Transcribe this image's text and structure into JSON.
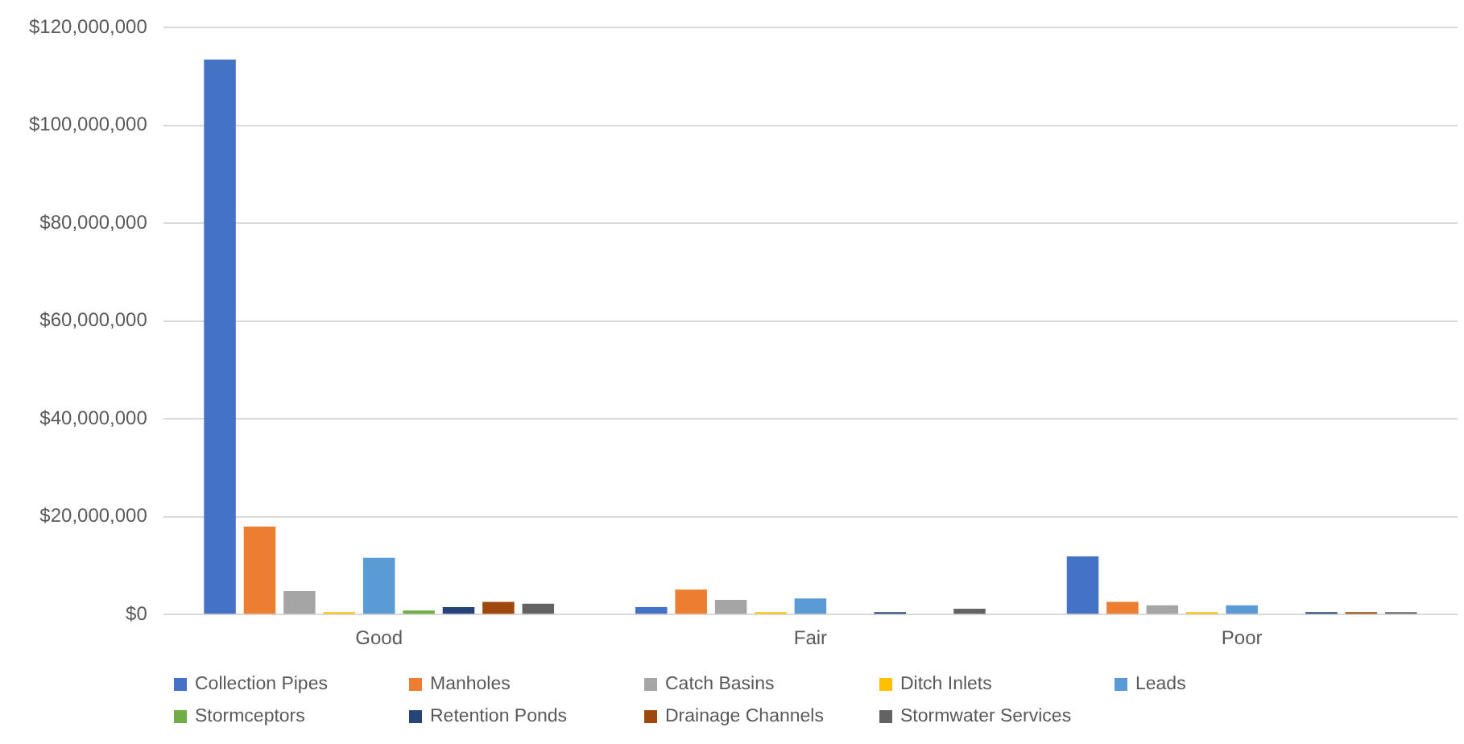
{
  "chart_data": {
    "type": "bar",
    "categories": [
      "Good",
      "Fair",
      "Poor"
    ],
    "series": [
      {
        "name": "Collection Pipes",
        "color": "#4472c4",
        "values": [
          113500000,
          1500000,
          11900000
        ]
      },
      {
        "name": "Manholes",
        "color": "#ed7d31",
        "values": [
          18000000,
          5100000,
          2600000
        ]
      },
      {
        "name": "Catch Basins",
        "color": "#a5a5a5",
        "values": [
          4800000,
          3000000,
          1900000
        ]
      },
      {
        "name": "Ditch Inlets",
        "color": "#ffc000",
        "values": [
          500000,
          500000,
          500000
        ]
      },
      {
        "name": "Leads",
        "color": "#5b9bd5",
        "values": [
          11600000,
          3300000,
          1900000
        ]
      },
      {
        "name": "Stormceptors",
        "color": "#70ad47",
        "values": [
          800000,
          0,
          0
        ]
      },
      {
        "name": "Retention Ponds",
        "color": "#264478",
        "values": [
          1500000,
          500000,
          500000
        ]
      },
      {
        "name": "Drainage Channels",
        "color": "#9e480e",
        "values": [
          2600000,
          0,
          500000
        ]
      },
      {
        "name": "Stormwater Services",
        "color": "#636363",
        "values": [
          2200000,
          1200000,
          500000
        ]
      }
    ],
    "ylim": [
      0,
      120000000
    ],
    "yticks": [
      {
        "value": 0,
        "label": "$0"
      },
      {
        "value": 20000000,
        "label": "$20,000,000"
      },
      {
        "value": 40000000,
        "label": "$40,000,000"
      },
      {
        "value": 60000000,
        "label": "$60,000,000"
      },
      {
        "value": 80000000,
        "label": "$80,000,000"
      },
      {
        "value": 100000000,
        "label": "$100,000,000"
      },
      {
        "value": 120000000,
        "label": "$120,000,000"
      }
    ],
    "grid": "y",
    "legend": "bottom"
  }
}
